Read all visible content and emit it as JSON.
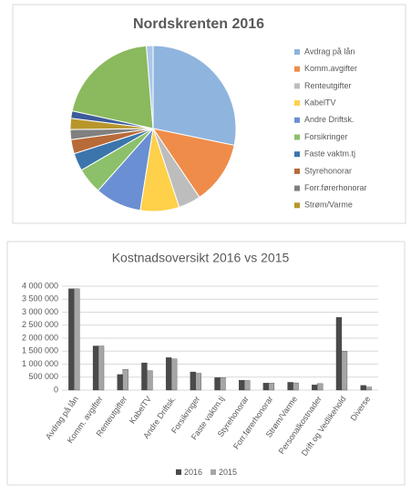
{
  "chart_data": [
    {
      "type": "pie",
      "title": "Nordskrenten 2016",
      "categories": [
        "Avdrag på lån",
        "Komm.avgifter",
        "Renteutgifter",
        "KabelTV",
        "Andre Driftsk.",
        "Forsikringer",
        "Faste vaktm.tj",
        "Styrehonorar",
        "Forr.førerhonorar",
        "Strøm/Varme",
        null,
        null,
        null
      ],
      "values": [
        3900000,
        1700000,
        600000,
        1050000,
        1250000,
        700000,
        480000,
        380000,
        270000,
        300000,
        200000,
        2800000,
        180000
      ],
      "colors": [
        "#8fb4de",
        "#ef8c4a",
        "#bdbdbd",
        "#ffd04a",
        "#6a8fd2",
        "#8cc06a",
        "#3b75ab",
        "#b86a38",
        "#808080",
        "#b8962c",
        "#3d5c99",
        "#8ab95e",
        "#a9c8ea"
      ],
      "legend": "right"
    },
    {
      "type": "bar",
      "title": "Kostnadsoversikt 2016 vs 2015",
      "categories": [
        "Avdrag på lån",
        "Komm. avgifter",
        "Renteutgifter",
        "KabelTV",
        "Andre Driftsk.",
        "Forsikringer",
        "Faste vaktm.tj",
        "Styrehonorar",
        "Forr.førerhonorar",
        "Strøm/Varme",
        "Personalkostnader",
        "Drift og Vedlikehold",
        "Diverse"
      ],
      "series": [
        {
          "name": "2016",
          "color": "#4a4a4a",
          "values": [
            3900000,
            1700000,
            600000,
            1050000,
            1250000,
            700000,
            480000,
            380000,
            270000,
            300000,
            200000,
            2800000,
            180000
          ]
        },
        {
          "name": "2015",
          "color": "#a6a6a6",
          "values": [
            3900000,
            1700000,
            800000,
            750000,
            1200000,
            650000,
            480000,
            370000,
            270000,
            280000,
            250000,
            1500000,
            120000
          ]
        }
      ],
      "ylim": [
        0,
        4000000
      ],
      "yticks": [
        0,
        {
          "value": 500000,
          "label": "500 000"
        },
        {
          "value": 1000000,
          "label": "1 000 000"
        },
        {
          "value": 1500000,
          "label": "1 500 000"
        },
        {
          "value": 2000000,
          "label": "2 000 000"
        },
        {
          "value": 2500000,
          "label": "2 500 000"
        },
        {
          "value": 3000000,
          "label": "3 000 000"
        },
        {
          "value": 3500000,
          "label": "3 500 000"
        },
        {
          "value": 4000000,
          "label": "4 000 000"
        }
      ],
      "grid": true,
      "legend": "bottom"
    }
  ]
}
